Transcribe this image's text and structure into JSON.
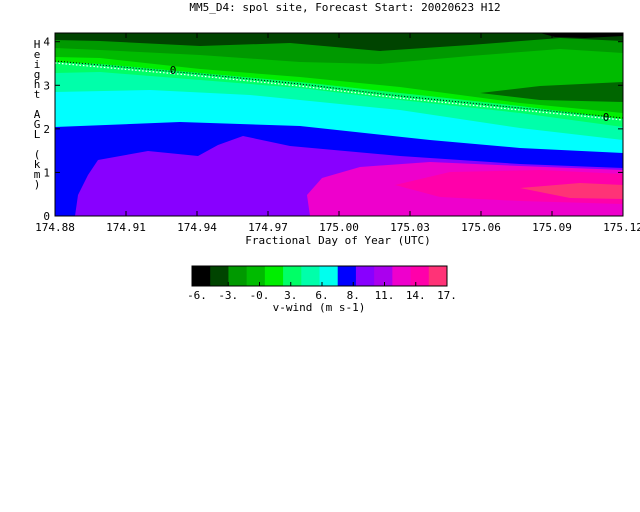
{
  "chart_data": {
    "type": "heatmap",
    "title": "MM5_D4: spol site,  Forecast Start: 20020623 H12",
    "xlabel": "Fractional Day of Year (UTC)",
    "ylabel": "Height AGL (km)",
    "xlim": [
      174.88,
      175.12
    ],
    "ylim": [
      0,
      4.2
    ],
    "x_ticks": [
      "174.88",
      "174.91",
      "174.94",
      "174.97",
      "175.00",
      "175.03",
      "175.06",
      "175.09",
      "175.12"
    ],
    "y_ticks": [
      "0",
      "1",
      "2",
      "3",
      "4"
    ],
    "contour_label": "0",
    "colorbar": {
      "label": "v-wind (m s-1)",
      "levels": [
        -7.5,
        -6,
        -4.5,
        -3,
        -1.5,
        0,
        1.5,
        3,
        4.5,
        6,
        7.5,
        9.5,
        11,
        12.5,
        14,
        16,
        17
      ],
      "tick_labels": [
        "-6.",
        "-3.",
        "-0.",
        "3.",
        "6.",
        "8.",
        "11.",
        "14.",
        "17."
      ],
      "colors": [
        "#000000",
        "#004400",
        "#009900",
        "#00bb00",
        "#00ee00",
        "#00ff66",
        "#00ffaa",
        "#00ffee",
        "#0000ff",
        "#8800ff",
        "#aa00ee",
        "#ee00cc",
        "#ff00aa",
        "#ff3377"
      ]
    }
  }
}
